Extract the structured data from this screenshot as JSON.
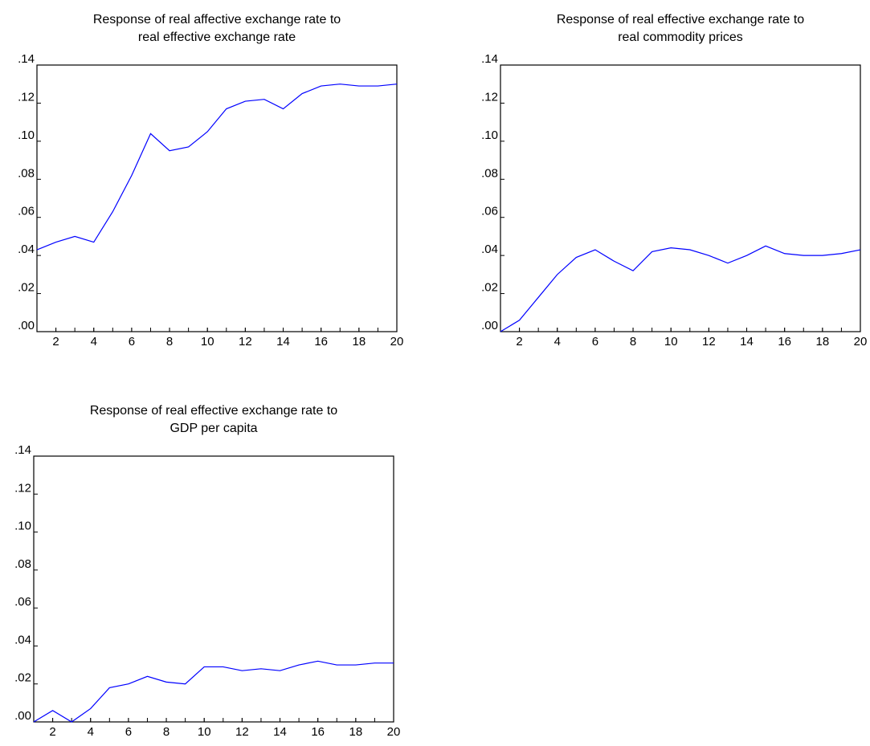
{
  "chart_data": [
    {
      "type": "line",
      "title": [
        "Response of real affective exchange rate to",
        "real effective exchange rate"
      ],
      "x": [
        1,
        2,
        3,
        4,
        5,
        6,
        7,
        8,
        9,
        10,
        11,
        12,
        13,
        14,
        15,
        16,
        17,
        18,
        19,
        20
      ],
      "series": [
        {
          "color": "#0000ff",
          "values": [
            0.043,
            0.047,
            0.05,
            0.047,
            0.063,
            0.082,
            0.104,
            0.095,
            0.097,
            0.105,
            0.117,
            0.121,
            0.122,
            0.117,
            0.125,
            0.129,
            0.13,
            0.129,
            0.129,
            0.13
          ]
        }
      ],
      "xlim": [
        1,
        20
      ],
      "xticks": [
        2,
        4,
        6,
        8,
        10,
        12,
        14,
        16,
        18,
        20
      ],
      "ylim": [
        0,
        0.14
      ],
      "yticks": [
        {
          "value": 0,
          "label": ".00"
        },
        {
          "value": 0.02,
          "label": ".02"
        },
        {
          "value": 0.04,
          "label": ".04"
        },
        {
          "value": 0.06,
          "label": ".06"
        },
        {
          "value": 0.08,
          "label": ".08"
        },
        {
          "value": 0.1,
          "label": ".10"
        },
        {
          "value": 0.12,
          "label": ".12"
        },
        {
          "value": 0.14,
          "label": ".14"
        }
      ]
    },
    {
      "type": "line",
      "title": [
        "Response of real effective exchange rate to",
        "real commodity prices"
      ],
      "x": [
        1,
        2,
        3,
        4,
        5,
        6,
        7,
        8,
        9,
        10,
        11,
        12,
        13,
        14,
        15,
        16,
        17,
        18,
        19,
        20
      ],
      "series": [
        {
          "color": "#0000ff",
          "values": [
            0.0,
            0.006,
            0.018,
            0.03,
            0.039,
            0.043,
            0.037,
            0.032,
            0.042,
            0.044,
            0.043,
            0.04,
            0.036,
            0.04,
            0.045,
            0.041,
            0.04,
            0.04,
            0.041,
            0.043
          ]
        }
      ],
      "xlim": [
        1,
        20
      ],
      "xticks": [
        2,
        4,
        6,
        8,
        10,
        12,
        14,
        16,
        18,
        20
      ],
      "ylim": [
        0,
        0.14
      ],
      "yticks": [
        {
          "value": 0,
          "label": ".00"
        },
        {
          "value": 0.02,
          "label": ".02"
        },
        {
          "value": 0.04,
          "label": ".04"
        },
        {
          "value": 0.06,
          "label": ".06"
        },
        {
          "value": 0.08,
          "label": ".08"
        },
        {
          "value": 0.1,
          "label": ".10"
        },
        {
          "value": 0.12,
          "label": ".12"
        },
        {
          "value": 0.14,
          "label": ".14"
        }
      ]
    },
    {
      "type": "line",
      "title": [
        "Response of real effective exchange rate to",
        "GDP per capita"
      ],
      "x": [
        1,
        2,
        3,
        4,
        5,
        6,
        7,
        8,
        9,
        10,
        11,
        12,
        13,
        14,
        15,
        16,
        17,
        18,
        19,
        20
      ],
      "series": [
        {
          "color": "#0000ff",
          "values": [
            0.0,
            0.006,
            0.0,
            0.007,
            0.018,
            0.02,
            0.024,
            0.021,
            0.02,
            0.029,
            0.029,
            0.027,
            0.028,
            0.027,
            0.03,
            0.032,
            0.03,
            0.03,
            0.031,
            0.031
          ]
        }
      ],
      "xlim": [
        1,
        20
      ],
      "xticks": [
        2,
        4,
        6,
        8,
        10,
        12,
        14,
        16,
        18,
        20
      ],
      "ylim": [
        0,
        0.14
      ],
      "yticks": [
        {
          "value": 0,
          "label": ".00"
        },
        {
          "value": 0.02,
          "label": ".02"
        },
        {
          "value": 0.04,
          "label": ".04"
        },
        {
          "value": 0.06,
          "label": ".06"
        },
        {
          "value": 0.08,
          "label": ".08"
        },
        {
          "value": 0.1,
          "label": ".10"
        },
        {
          "value": 0.12,
          "label": ".12"
        },
        {
          "value": 0.14,
          "label": ".14"
        }
      ]
    }
  ]
}
